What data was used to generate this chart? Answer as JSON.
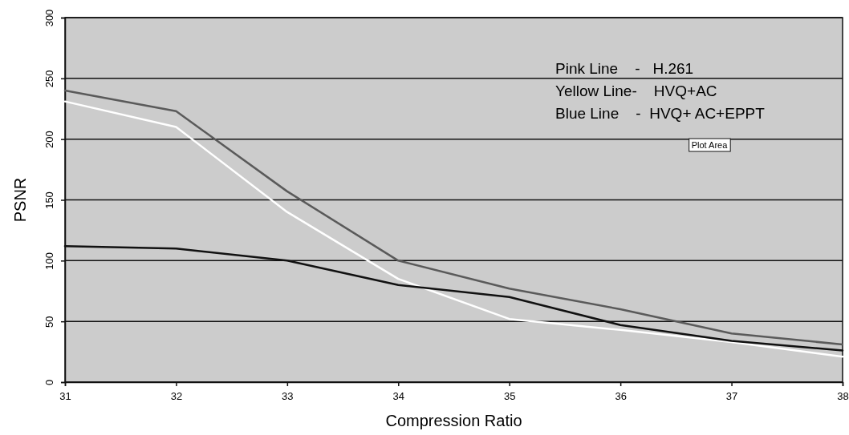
{
  "chart_data": {
    "type": "line",
    "xlabel": "Compression Ratio",
    "ylabel": "PSNR",
    "x": [
      31,
      32,
      33,
      34,
      35,
      36,
      37,
      38
    ],
    "xlim": [
      31,
      38
    ],
    "xticks": [
      31,
      32,
      33,
      34,
      35,
      36,
      37,
      38
    ],
    "ylim": [
      0,
      300
    ],
    "yticks": [
      0,
      50,
      100,
      150,
      200,
      250,
      300
    ],
    "grid": "y",
    "marker": "none",
    "line_style": "solid",
    "series": [
      {
        "color": "#5a5a5a",
        "values": [
          240,
          223,
          157,
          100,
          77,
          60,
          40,
          31
        ]
      },
      {
        "color": "#ffffff",
        "values": [
          231,
          210,
          140,
          85,
          52,
          43,
          33,
          21
        ]
      },
      {
        "color": "#111111",
        "values": [
          112,
          110,
          100,
          80,
          70,
          47,
          34,
          26
        ]
      }
    ],
    "annotations": [
      "Pink Line    -   H.261",
      "Yellow Line-    HVQ+AC",
      "Blue Line    -  HVQ+ AC+EPPT",
      "Plot Area"
    ]
  }
}
